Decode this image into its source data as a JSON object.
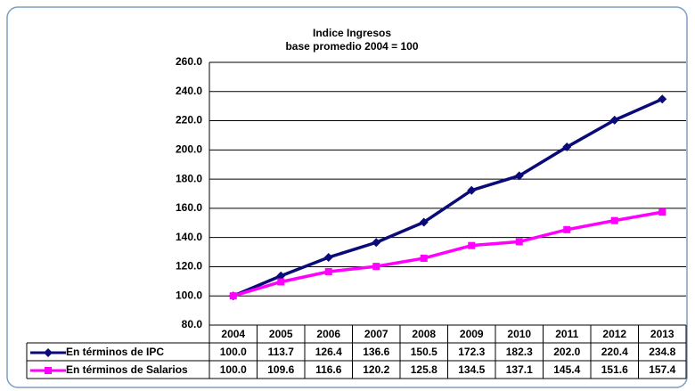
{
  "chart_data": {
    "type": "line",
    "title": "Indice Ingresos",
    "subtitle": "base promedio  2004 = 100",
    "categories": [
      "2004",
      "2005",
      "2006",
      "2007",
      "2008",
      "2009",
      "2010",
      "2011",
      "2012",
      "2013"
    ],
    "series": [
      {
        "name": "En términos de IPC",
        "color": "#0a0a78",
        "marker": "diamond",
        "values": [
          100.0,
          113.7,
          126.4,
          136.6,
          150.5,
          172.3,
          182.3,
          202.0,
          220.4,
          234.8
        ],
        "value_labels": [
          "100.0",
          "113.7",
          "126.4",
          "136.6",
          "150.5",
          "172.3",
          "182.3",
          "202.0",
          "220.4",
          "234.8"
        ]
      },
      {
        "name": "En términos de Salarios",
        "color": "#ff00ff",
        "marker": "square",
        "values": [
          100.0,
          109.6,
          116.6,
          120.2,
          125.8,
          134.5,
          137.1,
          145.4,
          151.6,
          157.4
        ],
        "value_labels": [
          "100.0",
          "109.6",
          "116.6",
          "120.2",
          "125.8",
          "134.5",
          "137.1",
          "145.4",
          "151.6",
          "157.4"
        ]
      }
    ],
    "ylim": [
      80,
      260
    ],
    "yticks": [
      {
        "value": 80,
        "label": "80.0"
      },
      {
        "value": 100,
        "label": "100.0"
      },
      {
        "value": 120,
        "label": "120.0"
      },
      {
        "value": 140,
        "label": "140.0"
      },
      {
        "value": 160,
        "label": "160.0"
      },
      {
        "value": 180,
        "label": "180.0"
      },
      {
        "value": 200,
        "label": "200.0"
      },
      {
        "value": 220,
        "label": "220.0"
      },
      {
        "value": 240,
        "label": "240.0"
      },
      {
        "value": 260,
        "label": "260.0"
      }
    ],
    "grid": true
  }
}
